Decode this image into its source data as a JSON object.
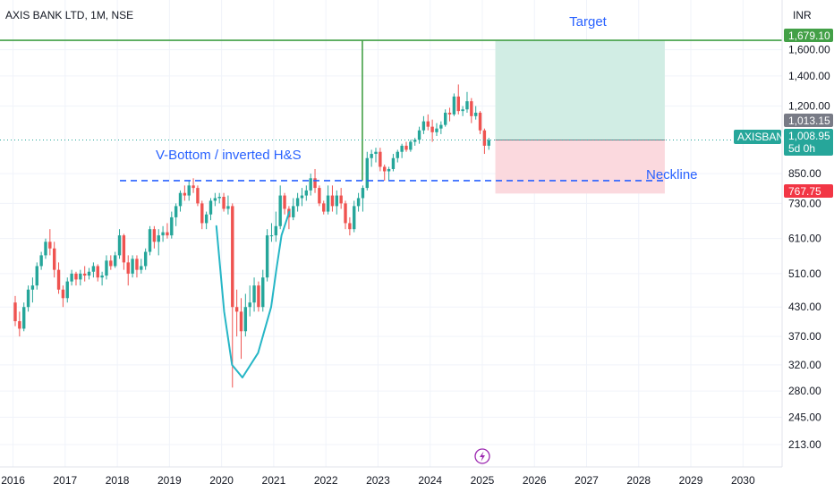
{
  "header": {
    "symbol_title": "AXIS BANK LTD, 1M, NSE",
    "currency": "INR"
  },
  "price_tags": {
    "target": "1,679.10",
    "previous": "1,013.15",
    "symbol": "AXISBANK",
    "last": "1,008.95",
    "countdown": "5d 0h",
    "stop": "767.75"
  },
  "annotations": {
    "target_label": "Target",
    "pattern_label": "V-Bottom / inverted H&S",
    "neckline_label": "Neckline"
  },
  "colors": {
    "up": "#26a69a",
    "down": "#ef5350",
    "target_line": "#43a047",
    "annotation": "#2962ff",
    "curve": "#26b6c6",
    "profit_zone": "#d1ede4",
    "loss_zone": "#fbd9de",
    "tag_grey": "#787b86",
    "tag_red": "#f23645",
    "tag_teal": "#26a69a"
  },
  "icons": {
    "bottom_marker": "lightning-icon"
  },
  "chart_data": {
    "type": "candlestick",
    "interval": "1M",
    "scale": "log",
    "ylim": [
      190,
      1900
    ],
    "xlim": [
      2015.75,
      2030.75
    ],
    "y_ticks": [
      "1,600.00",
      "1,400.00",
      "1,200.00",
      "850.00",
      "730.00",
      "610.00",
      "510.00",
      "430.00",
      "370.00",
      "320.00",
      "280.00",
      "245.00",
      "213.00"
    ],
    "x_ticks": [
      "2016",
      "2017",
      "2018",
      "2019",
      "2020",
      "2021",
      "2022",
      "2023",
      "2024",
      "2025",
      "2026",
      "2027",
      "2028",
      "2029",
      "2030"
    ],
    "levels": {
      "target": 1679.1,
      "entry": 1008.95,
      "stop": 767.75,
      "neckline": 820
    },
    "trade_box": {
      "start": 2025.25,
      "end": 2028.5
    },
    "target_vline": 2022.7,
    "candles": [
      [
        "2016-01",
        440,
        455,
        390,
        400
      ],
      [
        "2016-02",
        400,
        420,
        370,
        385
      ],
      [
        "2016-03",
        385,
        440,
        380,
        430
      ],
      [
        "2016-04",
        430,
        480,
        420,
        470
      ],
      [
        "2016-05",
        470,
        500,
        440,
        480
      ],
      [
        "2016-06",
        480,
        540,
        470,
        530
      ],
      [
        "2016-07",
        530,
        570,
        520,
        560
      ],
      [
        "2016-08",
        560,
        610,
        550,
        600
      ],
      [
        "2016-09",
        600,
        640,
        560,
        580
      ],
      [
        "2016-10",
        580,
        600,
        500,
        520
      ],
      [
        "2016-11",
        520,
        540,
        460,
        470
      ],
      [
        "2016-12",
        470,
        480,
        430,
        450
      ],
      [
        "2017-01",
        450,
        500,
        440,
        490
      ],
      [
        "2017-02",
        490,
        520,
        480,
        510
      ],
      [
        "2017-03",
        510,
        515,
        480,
        495
      ],
      [
        "2017-04",
        495,
        520,
        480,
        510
      ],
      [
        "2017-05",
        510,
        530,
        490,
        505
      ],
      [
        "2017-06",
        505,
        525,
        495,
        515
      ],
      [
        "2017-07",
        515,
        540,
        500,
        530
      ],
      [
        "2017-08",
        530,
        535,
        490,
        500
      ],
      [
        "2017-09",
        500,
        515,
        480,
        505
      ],
      [
        "2017-10",
        505,
        560,
        495,
        545
      ],
      [
        "2017-11",
        545,
        560,
        520,
        530
      ],
      [
        "2017-12",
        530,
        570,
        525,
        560
      ],
      [
        "2018-01",
        560,
        640,
        550,
        620
      ],
      [
        "2018-02",
        620,
        625,
        520,
        540
      ],
      [
        "2018-03",
        540,
        560,
        480,
        510
      ],
      [
        "2018-04",
        510,
        560,
        500,
        550
      ],
      [
        "2018-05",
        550,
        560,
        500,
        520
      ],
      [
        "2018-06",
        520,
        550,
        510,
        530
      ],
      [
        "2018-07",
        530,
        580,
        520,
        570
      ],
      [
        "2018-08",
        570,
        650,
        560,
        640
      ],
      [
        "2018-09",
        640,
        650,
        580,
        600
      ],
      [
        "2018-10",
        600,
        640,
        560,
        620
      ],
      [
        "2018-11",
        620,
        650,
        600,
        630
      ],
      [
        "2018-12",
        630,
        660,
        610,
        620
      ],
      [
        "2019-01",
        620,
        700,
        610,
        680
      ],
      [
        "2019-02",
        680,
        730,
        650,
        720
      ],
      [
        "2019-03",
        720,
        780,
        700,
        770
      ],
      [
        "2019-04",
        770,
        800,
        740,
        760
      ],
      [
        "2019-05",
        760,
        820,
        740,
        800
      ],
      [
        "2019-06",
        800,
        830,
        770,
        790
      ],
      [
        "2019-07",
        790,
        800,
        720,
        730
      ],
      [
        "2019-08",
        730,
        740,
        640,
        660
      ],
      [
        "2019-09",
        660,
        700,
        640,
        690
      ],
      [
        "2019-10",
        690,
        750,
        670,
        740
      ],
      [
        "2019-11",
        740,
        770,
        720,
        750
      ],
      [
        "2019-12",
        750,
        770,
        730,
        755
      ],
      [
        "2020-01",
        755,
        770,
        700,
        710
      ],
      [
        "2020-02",
        710,
        760,
        690,
        720
      ],
      [
        "2020-03",
        720,
        730,
        285,
        430
      ],
      [
        "2020-04",
        430,
        470,
        370,
        420
      ],
      [
        "2020-05",
        420,
        450,
        330,
        380
      ],
      [
        "2020-06",
        380,
        460,
        370,
        430
      ],
      [
        "2020-07",
        430,
        480,
        410,
        440
      ],
      [
        "2020-08",
        440,
        500,
        420,
        480
      ],
      [
        "2020-09",
        480,
        490,
        420,
        430
      ],
      [
        "2020-10",
        430,
        520,
        420,
        500
      ],
      [
        "2020-11",
        500,
        640,
        490,
        620
      ],
      [
        "2020-12",
        620,
        660,
        600,
        620
      ],
      [
        "2021-01",
        620,
        700,
        600,
        650
      ],
      [
        "2021-02",
        650,
        800,
        640,
        760
      ],
      [
        "2021-03",
        760,
        770,
        690,
        710
      ],
      [
        "2021-04",
        710,
        720,
        640,
        680
      ],
      [
        "2021-05",
        680,
        750,
        670,
        720
      ],
      [
        "2021-06",
        720,
        770,
        700,
        750
      ],
      [
        "2021-07",
        750,
        790,
        720,
        760
      ],
      [
        "2021-08",
        760,
        800,
        740,
        780
      ],
      [
        "2021-09",
        780,
        850,
        760,
        830
      ],
      [
        "2021-10",
        830,
        870,
        770,
        790
      ],
      [
        "2021-11",
        790,
        800,
        720,
        730
      ],
      [
        "2021-12",
        730,
        740,
        690,
        700
      ],
      [
        "2022-01",
        700,
        800,
        690,
        760
      ],
      [
        "2022-02",
        760,
        800,
        700,
        720
      ],
      [
        "2022-03",
        720,
        780,
        690,
        760
      ],
      [
        "2022-04",
        760,
        790,
        710,
        730
      ],
      [
        "2022-05",
        730,
        740,
        640,
        660
      ],
      [
        "2022-06",
        660,
        680,
        620,
        640
      ],
      [
        "2022-07",
        640,
        740,
        630,
        720
      ],
      [
        "2022-08",
        720,
        770,
        700,
        750
      ],
      [
        "2022-09",
        750,
        800,
        700,
        790
      ],
      [
        "2022-10",
        790,
        950,
        780,
        920
      ],
      [
        "2022-11",
        920,
        960,
        880,
        940
      ],
      [
        "2022-12",
        940,
        970,
        900,
        950
      ],
      [
        "2023-01",
        950,
        970,
        860,
        880
      ],
      [
        "2023-02",
        880,
        890,
        820,
        860
      ],
      [
        "2023-03",
        860,
        880,
        820,
        870
      ],
      [
        "2023-04",
        870,
        940,
        860,
        920
      ],
      [
        "2023-05",
        920,
        960,
        900,
        950
      ],
      [
        "2023-06",
        950,
        990,
        920,
        980
      ],
      [
        "2023-07",
        980,
        1000,
        950,
        960
      ],
      [
        "2023-08",
        960,
        1010,
        950,
        1000
      ],
      [
        "2023-09",
        1000,
        1020,
        980,
        1010
      ],
      [
        "2023-10",
        1010,
        1080,
        990,
        1060
      ],
      [
        "2023-11",
        1060,
        1140,
        1040,
        1110
      ],
      [
        "2023-12",
        1110,
        1150,
        1060,
        1080
      ],
      [
        "2024-01",
        1080,
        1120,
        1000,
        1050
      ],
      [
        "2024-02",
        1050,
        1100,
        1030,
        1070
      ],
      [
        "2024-03",
        1070,
        1110,
        1040,
        1090
      ],
      [
        "2024-04",
        1090,
        1180,
        1080,
        1160
      ],
      [
        "2024-05",
        1160,
        1190,
        1110,
        1150
      ],
      [
        "2024-06",
        1150,
        1280,
        1140,
        1260
      ],
      [
        "2024-07",
        1260,
        1340,
        1150,
        1170
      ],
      [
        "2024-08",
        1170,
        1200,
        1140,
        1180
      ],
      [
        "2024-09",
        1180,
        1290,
        1160,
        1230
      ],
      [
        "2024-10",
        1230,
        1250,
        1100,
        1140
      ],
      [
        "2024-11",
        1140,
        1200,
        1120,
        1160
      ],
      [
        "2024-12",
        1160,
        1170,
        1040,
        1060
      ],
      [
        "2025-01",
        1060,
        1070,
        940,
        980
      ],
      [
        "2025-02",
        980,
        1020,
        960,
        1008.95
      ]
    ]
  }
}
